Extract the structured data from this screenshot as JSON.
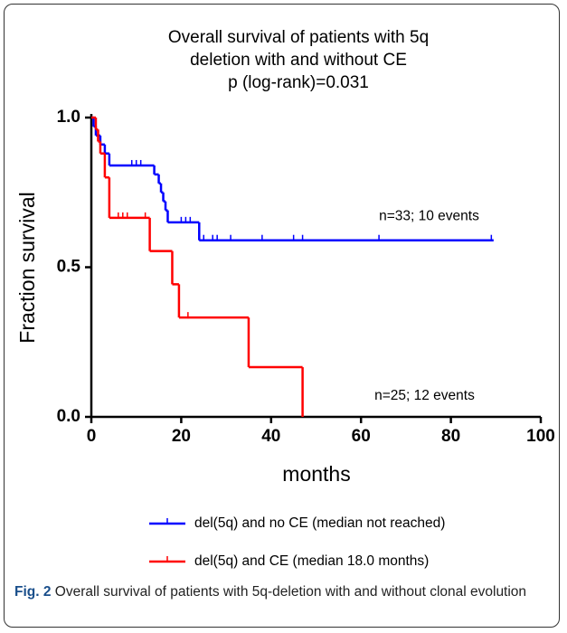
{
  "chart_data": {
    "type": "km",
    "title_lines": [
      "Overall survival of patients with 5q",
      "deletion with and without CE",
      "p (log-rank)=0.031"
    ],
    "xlabel": "months",
    "ylabel": "Fraction survival",
    "xlim": [
      0,
      100
    ],
    "ylim": [
      0,
      1
    ],
    "xticks": [
      0,
      20,
      40,
      60,
      80,
      100
    ],
    "yticks": [
      {
        "value": 0,
        "label": "0.0"
      },
      {
        "value": 0.5,
        "label": "0.5"
      },
      {
        "value": 1,
        "label": "1.0"
      }
    ],
    "series": [
      {
        "name": "del(5q) and no CE (median not reached)",
        "color": "#0000ff",
        "x": [
          0,
          0.5,
          1,
          2,
          3,
          4,
          14,
          15,
          15.5,
          16,
          16.5,
          17,
          24,
          89.5
        ],
        "values": [
          1,
          0.97,
          0.94,
          0.91,
          0.88,
          0.84,
          0.81,
          0.78,
          0.75,
          0.72,
          0.69,
          0.65,
          0.59,
          0.59
        ],
        "censor_x": [
          9,
          10,
          11,
          20,
          21,
          22,
          25,
          27,
          28,
          31,
          38,
          45,
          47,
          64,
          89
        ],
        "censor_y": [
          0.84,
          0.84,
          0.84,
          0.65,
          0.65,
          0.65,
          0.59,
          0.59,
          0.59,
          0.59,
          0.59,
          0.59,
          0.59,
          0.59,
          0.59
        ]
      },
      {
        "name": "del(5q) and CE (median 18.0 months)",
        "color": "#ff0000",
        "x": [
          0,
          1,
          1.5,
          2,
          3,
          4,
          13,
          18,
          19.5,
          35,
          47
        ],
        "values": [
          1,
          0.96,
          0.92,
          0.88,
          0.8,
          0.665,
          0.554,
          0.443,
          0.332,
          0.166,
          0
        ],
        "censor_x": [
          6,
          7,
          8,
          12,
          21.5
        ],
        "censor_y": [
          0.665,
          0.665,
          0.665,
          0.665,
          0.332
        ]
      }
    ],
    "annotations": [
      {
        "text": "n=33; 10 events",
        "x": 64,
        "y": 0.67
      },
      {
        "text": "n=25; 12 events",
        "x": 63,
        "y": 0.07
      }
    ]
  },
  "caption": {
    "label": "Fig. 2",
    "text": "Overall survival of patients with 5q-deletion with and without clonal evolution"
  }
}
